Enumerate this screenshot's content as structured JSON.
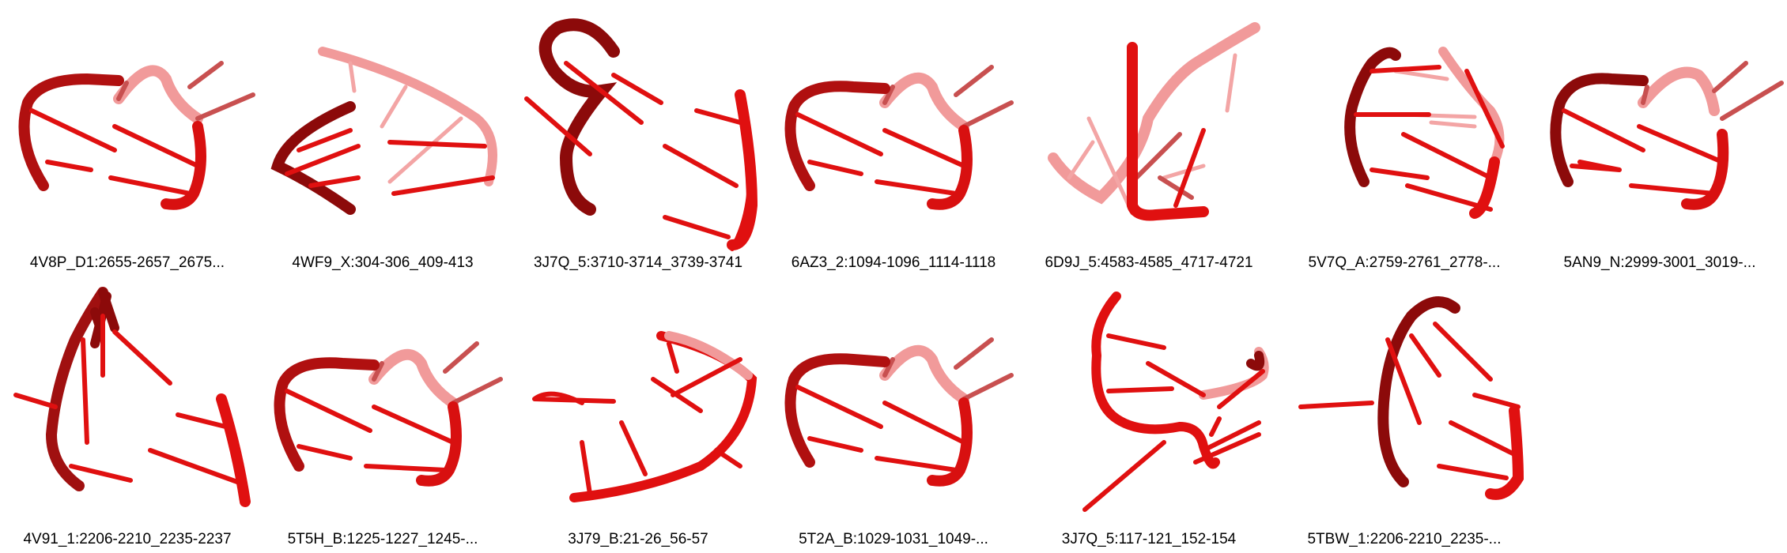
{
  "colors": {
    "primary": "#e01010",
    "dark": "#8c0a0a",
    "light": "#f19a9a"
  },
  "gallery": {
    "tiles": [
      {
        "label": "4V8P_D1:2655-2657_2675..."
      },
      {
        "label": "4WF9_X:304-306_409-413"
      },
      {
        "label": "3J7Q_5:3710-3714_3739-3741"
      },
      {
        "label": "6AZ3_2:1094-1096_1114-1118"
      },
      {
        "label": "6D9J_5:4583-4585_4717-4721"
      },
      {
        "label": "5V7Q_A:2759-2761_2778-..."
      },
      {
        "label": "5AN9_N:2999-3001_3019-..."
      },
      {
        "label": "4V91_1:2206-2210_2235-2237"
      },
      {
        "label": "5T5H_B:1225-1227_1245-..."
      },
      {
        "label": "3J79_B:21-26_56-57"
      },
      {
        "label": "5T2A_B:1029-1031_1049-..."
      },
      {
        "label": "3J7Q_5:117-121_152-154"
      },
      {
        "label": "5TBW_1:2206-2210_2235-..."
      }
    ]
  }
}
